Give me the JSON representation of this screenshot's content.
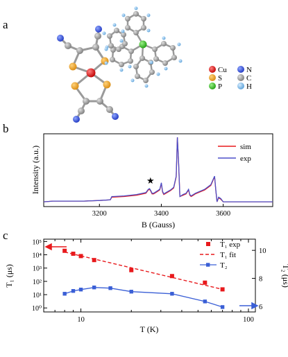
{
  "panels": {
    "a": "a",
    "b": "b",
    "c": "c"
  },
  "molecule": {
    "legend": [
      {
        "symbol": "Cu",
        "color": "#d01010"
      },
      {
        "symbol": "N",
        "color": "#2b4ad8"
      },
      {
        "symbol": "S",
        "color": "#e8a020"
      },
      {
        "symbol": "C",
        "color": "#8c8c8c"
      },
      {
        "symbol": "P",
        "color": "#30c020"
      },
      {
        "symbol": "H",
        "color": "#6fb3e0"
      }
    ]
  },
  "chart_data": [
    {
      "id": "epr",
      "type": "line",
      "xlabel": "B (Gauss)",
      "ylabel": "Intensity (a.u.)",
      "xlim": [
        3020,
        3760
      ],
      "xticks": [
        3200,
        3400,
        3600
      ],
      "yticks": [],
      "grid": false,
      "legend_position": "top-right",
      "annotation": "★",
      "annotation_x": 3365,
      "series": [
        {
          "name": "sim",
          "color": "#e8191c",
          "x": [
            3020,
            3050,
            3100,
            3150,
            3200,
            3235,
            3240,
            3245,
            3280,
            3320,
            3350,
            3358,
            3362,
            3366,
            3370,
            3375,
            3385,
            3395,
            3400,
            3404,
            3408,
            3415,
            3430,
            3440,
            3448,
            3452,
            3456,
            3460,
            3470,
            3480,
            3488,
            3492,
            3496,
            3500,
            3510,
            3540,
            3560,
            3572,
            3576,
            3580,
            3585,
            3592,
            3600,
            3620,
            3650,
            3700,
            3760
          ],
          "y": [
            0.02,
            0.03,
            0.03,
            0.03,
            0.04,
            0.05,
            0.09,
            0.09,
            0.1,
            0.12,
            0.15,
            0.2,
            0.21,
            0.18,
            0.14,
            0.14,
            0.17,
            0.2,
            0.3,
            0.17,
            0.13,
            0.15,
            0.19,
            0.23,
            0.4,
            1.0,
            0.6,
            0.1,
            0.12,
            0.14,
            0.2,
            0.12,
            0.1,
            0.11,
            0.14,
            0.2,
            0.27,
            0.4,
            0.2,
            0.02,
            0.08,
            0.06,
            0.02,
            0.02,
            0.02,
            0.02,
            0.02
          ]
        },
        {
          "name": "exp",
          "color": "#4b4fc8",
          "x": [
            3020,
            3050,
            3100,
            3150,
            3200,
            3235,
            3240,
            3245,
            3280,
            3320,
            3350,
            3358,
            3362,
            3366,
            3370,
            3375,
            3385,
            3395,
            3400,
            3404,
            3408,
            3415,
            3430,
            3440,
            3448,
            3452,
            3456,
            3460,
            3470,
            3480,
            3488,
            3492,
            3496,
            3500,
            3510,
            3540,
            3560,
            3572,
            3576,
            3580,
            3585,
            3592,
            3600,
            3620,
            3650,
            3700,
            3760
          ],
          "y": [
            0.02,
            0.03,
            0.03,
            0.03,
            0.04,
            0.05,
            0.1,
            0.1,
            0.11,
            0.13,
            0.16,
            0.21,
            0.22,
            0.19,
            0.15,
            0.15,
            0.18,
            0.21,
            0.31,
            0.18,
            0.14,
            0.16,
            0.2,
            0.24,
            0.41,
            1.0,
            0.61,
            0.1,
            0.13,
            0.15,
            0.21,
            0.13,
            0.11,
            0.12,
            0.15,
            0.21,
            0.28,
            0.41,
            0.21,
            0.02,
            0.09,
            0.07,
            0.02,
            0.02,
            0.02,
            0.02,
            0.02
          ]
        }
      ]
    },
    {
      "id": "relaxation",
      "type": "scatter",
      "xlabel": "T (K)",
      "ylabel_left": "T₁ (μs)",
      "ylabel_right": "T₂ (μs)",
      "x_scale": "log",
      "xlim": [
        6,
        110
      ],
      "xticks": [
        10,
        100
      ],
      "y_left_scale": "log",
      "ylim_left": [
        0.5,
        150000
      ],
      "yticks_left": [
        "10⁰",
        "10¹",
        "10²",
        "10³",
        "10⁴",
        "10⁵"
      ],
      "ylim_right": [
        5.6,
        10.8
      ],
      "yticks_right": [
        6,
        8,
        10
      ],
      "legend_position": "top-right",
      "series": [
        {
          "name": "T₁ exp",
          "axis": "left",
          "style": "square-markers",
          "color": "#e8191c",
          "x": [
            8,
            9,
            10,
            12,
            20,
            35,
            55,
            70
          ],
          "y": [
            20000,
            12000,
            8000,
            4000,
            700,
            250,
            80,
            25
          ]
        },
        {
          "name": "T₁ fit",
          "axis": "left",
          "style": "dashed",
          "color": "#e8191c",
          "x": [
            8,
            70
          ],
          "y": [
            16000,
            25
          ]
        },
        {
          "name": "T₂",
          "axis": "right",
          "style": "line-square-markers",
          "color": "#3a5fd6",
          "x": [
            8,
            9,
            10,
            12,
            15,
            20,
            35,
            55,
            70
          ],
          "y": [
            6.9,
            7.1,
            7.2,
            7.35,
            7.3,
            7.05,
            6.9,
            6.35,
            5.95
          ]
        }
      ]
    }
  ]
}
